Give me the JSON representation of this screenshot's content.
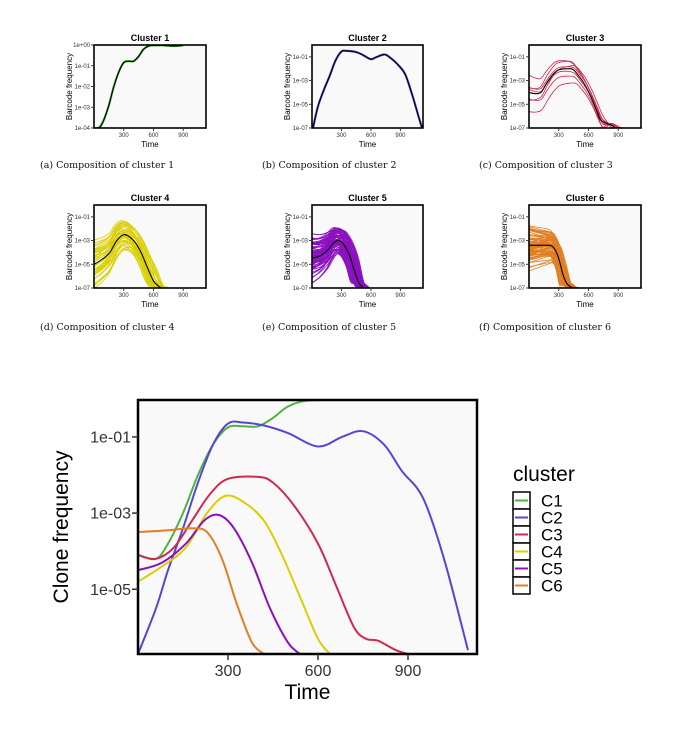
{
  "captions": [
    "(a) Composition of cluster 1",
    "(b) Composition of cluster 2",
    "(c) Composition of cluster 3",
    "(d) Composition of cluster 4",
    "(e) Composition of cluster 5",
    "(f) Composition of cluster 6"
  ],
  "colors": {
    "C1": "#4db33a",
    "C2": "#5545d6",
    "C3": "#d0284e",
    "C4": "#d9cf00",
    "C5": "#8c10c0",
    "C6": "#e07f22",
    "mean": "#000000",
    "panel_bg": "#f9f9f9"
  },
  "chart_data": [
    {
      "type": "line",
      "title": "Cluster 1",
      "xlabel": "Time",
      "ylabel": "Barcode frequency",
      "xlim": [
        0,
        1130
      ],
      "xticks": [
        300,
        600,
        900
      ],
      "yscale": "log10",
      "ylim_log10": [
        -4,
        0
      ],
      "yticks": [
        "1e-04",
        "1e-03",
        "1e-02",
        "1e-01",
        "1e+00"
      ],
      "ytick_log10": [
        -4,
        -3,
        -2,
        -1,
        0
      ],
      "color": "C1",
      "n_clones": 1,
      "mean_log10": {
        "x": [
          20,
          60,
          100,
          150,
          200,
          250,
          300,
          350,
          400,
          450,
          500,
          550,
          600,
          700,
          800,
          900
        ],
        "y": [
          -4,
          -3.95,
          -3.6,
          -2.9,
          -2.0,
          -1.3,
          -0.85,
          -0.78,
          -0.78,
          -0.55,
          -0.2,
          -0.05,
          -0.02,
          -0.02,
          -0.05,
          -0.02
        ]
      }
    },
    {
      "type": "line",
      "title": "Cluster 2",
      "xlabel": "Time",
      "ylabel": "Barcode frequency",
      "xlim": [
        0,
        1130
      ],
      "xticks": [
        300,
        600,
        900
      ],
      "yscale": "log10",
      "ylim_log10": [
        -7,
        0
      ],
      "yticks": [
        "1e-07",
        "1e-05",
        "1e-03",
        "1e-01"
      ],
      "ytick_log10": [
        -7,
        -5,
        -3,
        -1
      ],
      "color": "C2",
      "n_clones": 1,
      "mean_log10": {
        "x": [
          10,
          60,
          120,
          180,
          240,
          300,
          350,
          450,
          520,
          600,
          660,
          740,
          800,
          880,
          950,
          1020,
          1080,
          1120
        ],
        "y": [
          -7,
          -5.2,
          -3.8,
          -2.6,
          -1.3,
          -0.55,
          -0.5,
          -0.6,
          -0.85,
          -1.2,
          -1.0,
          -0.8,
          -1.1,
          -1.7,
          -2.5,
          -4.2,
          -5.9,
          -7
        ]
      }
    },
    {
      "type": "line",
      "title": "Cluster 3",
      "xlabel": "Time",
      "ylabel": "Barcode frequency",
      "xlim": [
        0,
        1130
      ],
      "xticks": [
        300,
        600,
        900
      ],
      "yscale": "log10",
      "ylim_log10": [
        -7,
        0
      ],
      "yticks": [
        "1e-07",
        "1e-05",
        "1e-03",
        "1e-01"
      ],
      "ytick_log10": [
        -7,
        -5,
        -3,
        -1
      ],
      "color": "C3",
      "n_clones": 7,
      "mean_log10": {
        "x": [
          0,
          60,
          120,
          180,
          240,
          300,
          400,
          450,
          500,
          560,
          620,
          680,
          720,
          780,
          840,
          900,
          1130
        ],
        "y": [
          -4.0,
          -4.1,
          -4.0,
          -3.2,
          -2.5,
          -2.1,
          -2.0,
          -2.1,
          -2.6,
          -3.3,
          -4.3,
          -5.5,
          -6.3,
          -6.6,
          -6.8,
          -7,
          -7
        ]
      }
    },
    {
      "type": "line",
      "title": "Cluster 4",
      "xlabel": "Time",
      "ylabel": "Barcode frequency",
      "xlim": [
        0,
        1130
      ],
      "xticks": [
        300,
        600,
        900
      ],
      "yscale": "log10",
      "ylim_log10": [
        -7,
        0
      ],
      "yticks": [
        "1e-07",
        "1e-05",
        "1e-03",
        "1e-01"
      ],
      "ytick_log10": [
        -7,
        -5,
        -3,
        -1
      ],
      "color": "C4",
      "n_clones": 40,
      "mean_log10": {
        "x": [
          0,
          80,
          160,
          230,
          300,
          360,
          420,
          480,
          540,
          600,
          660,
          700
        ],
        "y": [
          -5.0,
          -4.6,
          -4.0,
          -3.0,
          -2.5,
          -2.7,
          -3.2,
          -4.1,
          -5.3,
          -6.4,
          -6.9,
          -7
        ]
      }
    },
    {
      "type": "line",
      "title": "Cluster 5",
      "xlabel": "Time",
      "ylabel": "Barcode frequency",
      "xlim": [
        0,
        1130
      ],
      "xticks": [
        300,
        600,
        900
      ],
      "yscale": "log10",
      "ylim_log10": [
        -7,
        0
      ],
      "yticks": [
        "1e-07",
        "1e-05",
        "1e-03",
        "1e-01"
      ],
      "ytick_log10": [
        -7,
        -5,
        -3,
        -1
      ],
      "color": "C5",
      "n_clones": 80,
      "mean_log10": {
        "x": [
          0,
          80,
          160,
          220,
          270,
          320,
          380,
          430,
          480,
          530
        ],
        "y": [
          -4.5,
          -4.3,
          -3.8,
          -3.2,
          -3.0,
          -3.3,
          -4.2,
          -5.5,
          -6.6,
          -7
        ]
      }
    },
    {
      "type": "line",
      "title": "Cluster 6",
      "xlabel": "Time",
      "ylabel": "Barcode frequency",
      "xlim": [
        0,
        1130
      ],
      "xticks": [
        300,
        600,
        900
      ],
      "yscale": "log10",
      "ylim_log10": [
        -7,
        0
      ],
      "yticks": [
        "1e-07",
        "1e-05",
        "1e-03",
        "1e-01"
      ],
      "ytick_log10": [
        -7,
        -5,
        -3,
        -1
      ],
      "color": "C6",
      "n_clones": 80,
      "mean_log10": {
        "x": [
          0,
          100,
          200,
          250,
          300,
          340,
          380,
          420,
          460
        ],
        "y": [
          -3.4,
          -3.4,
          -3.4,
          -3.6,
          -4.5,
          -5.8,
          -6.6,
          -6.9,
          -7
        ]
      }
    },
    {
      "type": "line",
      "title": "",
      "xlabel": "Time",
      "ylabel": "Clone frequency",
      "xlim": [
        0,
        1130
      ],
      "xticks": [
        300,
        600,
        900
      ],
      "yscale": "log10",
      "ylim_log10": [
        -6.7,
        -0.03
      ],
      "yticks": [
        "1e-05",
        "1e-03",
        "1e-01"
      ],
      "ytick_log10": [
        -5,
        -3,
        -1
      ],
      "legend": {
        "title": "cluster",
        "position": "right",
        "entries": [
          "C1",
          "C2",
          "C3",
          "C4",
          "C5",
          "C6"
        ]
      },
      "series": [
        {
          "name": "C1",
          "x": [
            0,
            60,
            100,
            150,
            200,
            250,
            300,
            350,
            400,
            450,
            500,
            560,
            650,
            750,
            850
          ],
          "y": [
            -4.1,
            -4.2,
            -3.8,
            -3.0,
            -2.0,
            -1.2,
            -0.75,
            -0.72,
            -0.72,
            -0.5,
            -0.2,
            -0.05,
            -0.03,
            -0.03,
            -0.03
          ]
        },
        {
          "name": "C2",
          "x": [
            0,
            60,
            100,
            150,
            200,
            250,
            300,
            350,
            420,
            500,
            600,
            680,
            750,
            820,
            880,
            950,
            1020,
            1100
          ],
          "y": [
            -6.7,
            -5.5,
            -4.5,
            -3.4,
            -2.2,
            -1.2,
            -0.65,
            -0.62,
            -0.7,
            -0.9,
            -1.25,
            -1.0,
            -0.85,
            -1.2,
            -1.9,
            -2.6,
            -4.2,
            -6.6
          ]
        },
        {
          "name": "C3",
          "x": [
            0,
            60,
            120,
            180,
            240,
            300,
            400,
            450,
            520,
            600,
            660,
            720,
            760,
            800,
            860,
            900
          ],
          "y": [
            -4.1,
            -4.2,
            -3.9,
            -3.2,
            -2.5,
            -2.1,
            -2.05,
            -2.2,
            -2.8,
            -3.8,
            -4.9,
            -6.0,
            -6.3,
            -6.35,
            -6.6,
            -6.7
          ]
        },
        {
          "name": "C4",
          "x": [
            0,
            80,
            160,
            230,
            290,
            350,
            420,
            480,
            540,
            600,
            640
          ],
          "y": [
            -4.8,
            -4.4,
            -3.9,
            -3.0,
            -2.55,
            -2.7,
            -3.2,
            -4.1,
            -5.2,
            -6.3,
            -6.7
          ]
        },
        {
          "name": "C5",
          "x": [
            0,
            80,
            160,
            220,
            270,
            320,
            380,
            440,
            500,
            540
          ],
          "y": [
            -4.5,
            -4.3,
            -3.8,
            -3.2,
            -3.05,
            -3.4,
            -4.3,
            -5.5,
            -6.4,
            -6.7
          ]
        },
        {
          "name": "C6",
          "x": [
            0,
            100,
            180,
            230,
            280,
            330,
            380,
            420
          ],
          "y": [
            -3.5,
            -3.45,
            -3.4,
            -3.5,
            -4.2,
            -5.4,
            -6.4,
            -6.7
          ]
        }
      ]
    }
  ]
}
